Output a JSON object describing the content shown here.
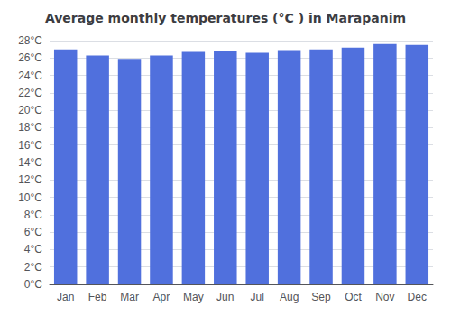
{
  "chart_data": {
    "type": "bar",
    "title": "Average monthly temperatures (°C ) in Marapanim",
    "categories": [
      "Jan",
      "Feb",
      "Mar",
      "Apr",
      "May",
      "Jun",
      "Jul",
      "Aug",
      "Sep",
      "Oct",
      "Nov",
      "Dec"
    ],
    "values": [
      27.0,
      26.3,
      25.9,
      26.3,
      26.7,
      26.8,
      26.6,
      26.9,
      27.0,
      27.2,
      27.6,
      27.5
    ],
    "ylim": [
      0,
      28
    ],
    "yticks": [
      {
        "value": 0,
        "label": "0°C"
      },
      {
        "value": 2,
        "label": "2°C"
      },
      {
        "value": 4,
        "label": "4°C"
      },
      {
        "value": 6,
        "label": "6°C"
      },
      {
        "value": 8,
        "label": "8°C"
      },
      {
        "value": 10,
        "label": "10°C"
      },
      {
        "value": 12,
        "label": "12°C"
      },
      {
        "value": 14,
        "label": "14°C"
      },
      {
        "value": 16,
        "label": "16°C"
      },
      {
        "value": 18,
        "label": "18°C"
      },
      {
        "value": 20,
        "label": "20°C"
      },
      {
        "value": 22,
        "label": "22°C"
      },
      {
        "value": 24,
        "label": "24°C"
      },
      {
        "value": 26,
        "label": "26°C"
      },
      {
        "value": 28,
        "label": "28°C"
      }
    ],
    "grid": true
  }
}
